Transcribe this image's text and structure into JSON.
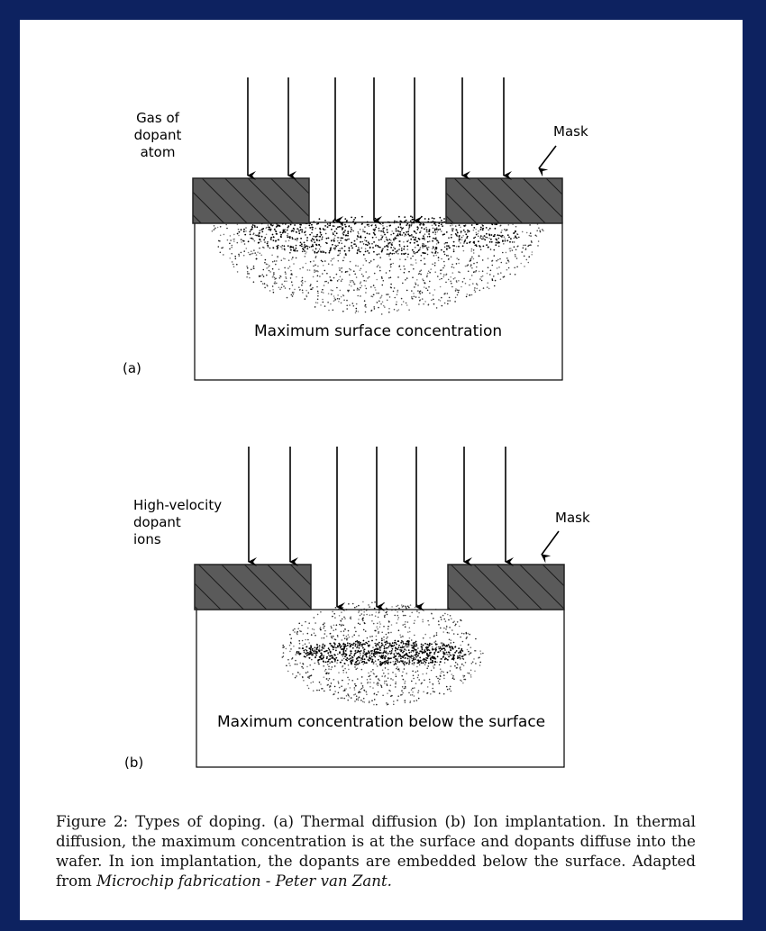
{
  "diagram_a": {
    "gas_label_lines": [
      "Gas of",
      "dopant",
      "atom"
    ],
    "mask_label": "Mask",
    "region_label": "Maximum surface concentration",
    "panel_label": "(a)"
  },
  "diagram_b": {
    "ions_label_lines": [
      "High-velocity",
      "dopant",
      "ions"
    ],
    "mask_label": "Mask",
    "region_label": "Maximum concentration below the surface",
    "panel_label": "(b)"
  },
  "caption": {
    "text": "Figure 2: Types of doping. (a) Thermal diffusion (b) Ion implantation. In thermal diffusion, the maximum concentration is at the surface and dopants diffuse into the wafer. In ion implantation, the dopants are embedded below the surface. Adapted from ",
    "italic": "Microchip fabrication - Peter van Zant."
  },
  "colors": {
    "frame": "#0d2260",
    "mask_fill": "#5a5a5a",
    "ink": "#000000"
  }
}
